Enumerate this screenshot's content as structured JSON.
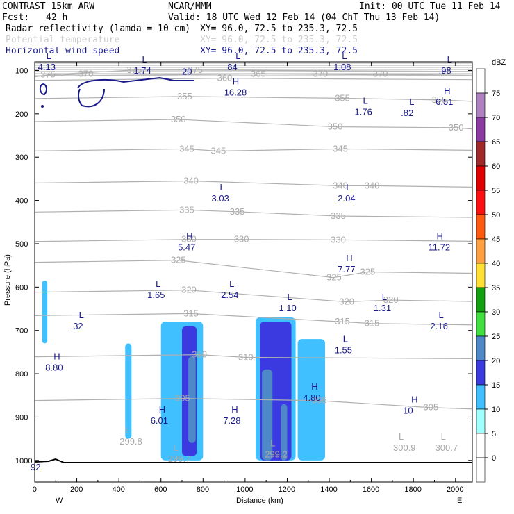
{
  "header": {
    "title": "CONTRAST 15km ARW",
    "producer": "NCAR/MMM",
    "init": "Init: 00 UTC Tue 11 Feb 14",
    "fcst_label": "Fcst:",
    "fcst_value": "42 h",
    "valid": "Valid: 18 UTC Wed 12 Feb 14 (04 ChT Thu 13 Feb 14)",
    "fields": [
      {
        "name": "Radar reflectivity (lamda = 10 cm)",
        "xy": "XY=  96.0, 72.5 to 235.3, 72.5",
        "color": "#000000"
      },
      {
        "name": "Potential temperature",
        "xy": "XY=  96.0, 72.5 to 235.3, 72.5",
        "color": "#cccccc"
      },
      {
        "name": "Horizontal wind speed",
        "xy": "XY=  96.0, 72.5 to 235.3, 72.5",
        "color": "#1a1a8c"
      }
    ]
  },
  "chart_data": {
    "type": "cross-section",
    "xlabel": "Distance (km)",
    "ylabel": "Pressure (hPa)",
    "xlim": [
      0,
      2080
    ],
    "ylim": [
      1050,
      80
    ],
    "xticks": [
      0,
      200,
      400,
      600,
      800,
      1000,
      1200,
      1400,
      1600,
      1800,
      2000
    ],
    "yticks": [
      100,
      200,
      300,
      400,
      500,
      600,
      700,
      800,
      900,
      1000
    ],
    "x_left_label": "W",
    "x_right_label": "E",
    "colorbar": {
      "unit": "dBZ",
      "levels": [
        -5,
        0,
        5,
        10,
        15,
        20,
        25,
        30,
        35,
        40,
        45,
        50,
        55,
        60,
        65,
        70,
        75
      ],
      "labels": [
        "0",
        "5",
        "10",
        "15",
        "20",
        "25",
        "30",
        "35",
        "40",
        "45",
        "50",
        "55",
        "60",
        "65",
        "70",
        "75"
      ],
      "colors": [
        "#ffffff",
        "#ffffff",
        "#a0ffff",
        "#40c0ff",
        "#3a3ae0",
        "#4f88c8",
        "#40e040",
        "#10a010",
        "#ffe033",
        "#ffa040",
        "#ff5a10",
        "#ff1010",
        "#e00000",
        "#a02828",
        "#8a3aa0",
        "#b080c0",
        "#ffffff"
      ]
    },
    "theta_isentropes": [
      {
        "value": "375",
        "labels": [
          [
            60,
            110
          ],
          [
            470,
            99
          ],
          [
            760,
            99
          ]
        ]
      },
      {
        "value": "370",
        "labels": [
          [
            240,
            108
          ],
          [
            1355,
            108
          ],
          [
            1640,
            108
          ]
        ]
      },
      {
        "value": "365",
        "labels": [
          [
            1060,
            108
          ]
        ]
      },
      {
        "value": "360",
        "labels": [
          [
            900,
            118
          ]
        ]
      },
      {
        "value": "355",
        "labels": [
          [
            710,
            160
          ],
          [
            1460,
            164
          ],
          [
            1920,
            168
          ]
        ]
      },
      {
        "value": "350",
        "labels": [
          [
            680,
            213
          ],
          [
            1425,
            230
          ],
          [
            2000,
            232
          ]
        ]
      },
      {
        "value": "345",
        "labels": [
          [
            720,
            281
          ],
          [
            870,
            286
          ],
          [
            1450,
            281
          ]
        ]
      },
      {
        "value": "340",
        "labels": [
          [
            740,
            355
          ],
          [
            1450,
            366
          ],
          [
            1600,
            366
          ]
        ]
      },
      {
        "value": "335",
        "labels": [
          [
            720,
            422
          ],
          [
            960,
            426
          ],
          [
            1440,
            436
          ]
        ]
      },
      {
        "value": "330",
        "labels": [
          [
            730,
            490
          ],
          [
            980,
            490
          ],
          [
            1440,
            491
          ]
        ]
      },
      {
        "value": "325",
        "labels": [
          [
            680,
            538
          ],
          [
            1420,
            578
          ],
          [
            1580,
            565
          ]
        ]
      },
      {
        "value": "320",
        "labels": [
          [
            730,
            607
          ],
          [
            1480,
            634
          ],
          [
            1690,
            630
          ]
        ]
      },
      {
        "value": "315",
        "labels": [
          [
            740,
            661
          ],
          [
            1460,
            680
          ],
          [
            1600,
            684
          ]
        ]
      },
      {
        "value": "310",
        "labels": [
          [
            780,
            756
          ],
          [
            1000,
            762
          ]
        ]
      },
      {
        "value": "305",
        "labels": [
          [
            700,
            857
          ],
          [
            1350,
            862
          ],
          [
            1880,
            878
          ]
        ]
      }
    ],
    "theta_lows": [
      {
        "label": "L",
        "value": "299.8",
        "x": 430,
        "p": 960
      },
      {
        "label": "L",
        "value": "299.7",
        "x": 660,
        "p": 1000
      },
      {
        "label": "L",
        "value": "299.2",
        "x": 1120,
        "p": 990
      },
      {
        "label": "L",
        "value": "300.9",
        "x": 1730,
        "p": 975
      },
      {
        "label": "L",
        "value": "300.7",
        "x": 1930,
        "p": 975
      }
    ],
    "wind_extrema": [
      {
        "type": "L",
        "value": "4.13",
        "x": 55,
        "p": 77
      },
      {
        "type": "L",
        "value": "1.74",
        "x": 510,
        "p": 85
      },
      {
        "type": "L",
        "value": "84",
        "x": 955,
        "p": 77
      },
      {
        "type": "L",
        "value": "1.08",
        "x": 1460,
        "p": 77
      },
      {
        "type": "L",
        "value": ".98",
        "x": 1960,
        "p": 85
      },
      {
        "type": "H",
        "value": "16.28",
        "x": 940,
        "p": 135
      },
      {
        "type": "L",
        "value": "1.76",
        "x": 1560,
        "p": 180
      },
      {
        "type": "L",
        "value": ".82",
        "x": 1780,
        "p": 183
      },
      {
        "type": "H",
        "value": "6.51",
        "x": 1945,
        "p": 157
      },
      {
        "type": "L",
        "value": "3.03",
        "x": 880,
        "p": 380
      },
      {
        "type": "L",
        "value": "2.04",
        "x": 1480,
        "p": 380
      },
      {
        "type": "H",
        "value": "5.47",
        "x": 720,
        "p": 493
      },
      {
        "type": "H",
        "value": "11.72",
        "x": 1910,
        "p": 493
      },
      {
        "type": "H",
        "value": "7.77",
        "x": 1480,
        "p": 543
      },
      {
        "type": "L",
        "value": "1.65",
        "x": 575,
        "p": 603
      },
      {
        "type": "L",
        "value": "2.54",
        "x": 925,
        "p": 603
      },
      {
        "type": "L",
        "value": "1.10",
        "x": 1200,
        "p": 633
      },
      {
        "type": "L",
        "value": "1.31",
        "x": 1650,
        "p": 633
      },
      {
        "type": "L",
        "value": ".32",
        "x": 210,
        "p": 675
      },
      {
        "type": "L",
        "value": "2.16",
        "x": 1920,
        "p": 675
      },
      {
        "type": "L",
        "value": "1.55",
        "x": 1465,
        "p": 730
      },
      {
        "type": "H",
        "value": "8.80",
        "x": 90,
        "p": 770
      },
      {
        "type": "H",
        "value": "4.80",
        "x": 1315,
        "p": 840
      },
      {
        "type": "H",
        "value": "10",
        "x": 1790,
        "p": 870
      },
      {
        "type": "H",
        "value": "6.01",
        "x": 590,
        "p": 893
      },
      {
        "type": "H",
        "value": "7.28",
        "x": 935,
        "p": 893
      },
      {
        "type": "",
        "value": "92",
        "x": 20,
        "p": 1000
      }
    ],
    "wind_contours": [
      {
        "value": "20",
        "label_x": 700,
        "label_p": 100
      }
    ],
    "reflectivity_cells": [
      {
        "x0": 35,
        "x1": 60,
        "p_top": 585,
        "p_bot": 730,
        "dbz": 5
      },
      {
        "x0": 430,
        "x1": 460,
        "p_top": 730,
        "p_bot": 950,
        "dbz": 5
      },
      {
        "x0": 600,
        "x1": 800,
        "p_top": 680,
        "p_bot": 1000,
        "dbz": 5
      },
      {
        "x0": 700,
        "x1": 770,
        "p_top": 690,
        "p_bot": 990,
        "dbz": 10
      },
      {
        "x0": 730,
        "x1": 765,
        "p_top": 760,
        "p_bot": 960,
        "dbz": 15
      },
      {
        "x0": 1050,
        "x1": 1240,
        "p_top": 670,
        "p_bot": 1000,
        "dbz": 5
      },
      {
        "x0": 1070,
        "x1": 1220,
        "p_top": 680,
        "p_bot": 1000,
        "dbz": 10
      },
      {
        "x0": 1080,
        "x1": 1130,
        "p_top": 790,
        "p_bot": 1000,
        "dbz": 15
      },
      {
        "x0": 1170,
        "x1": 1200,
        "p_top": 870,
        "p_bot": 1000,
        "dbz": 15
      },
      {
        "x0": 1250,
        "x1": 1380,
        "p_top": 720,
        "p_bot": 1000,
        "dbz": 5
      }
    ]
  }
}
